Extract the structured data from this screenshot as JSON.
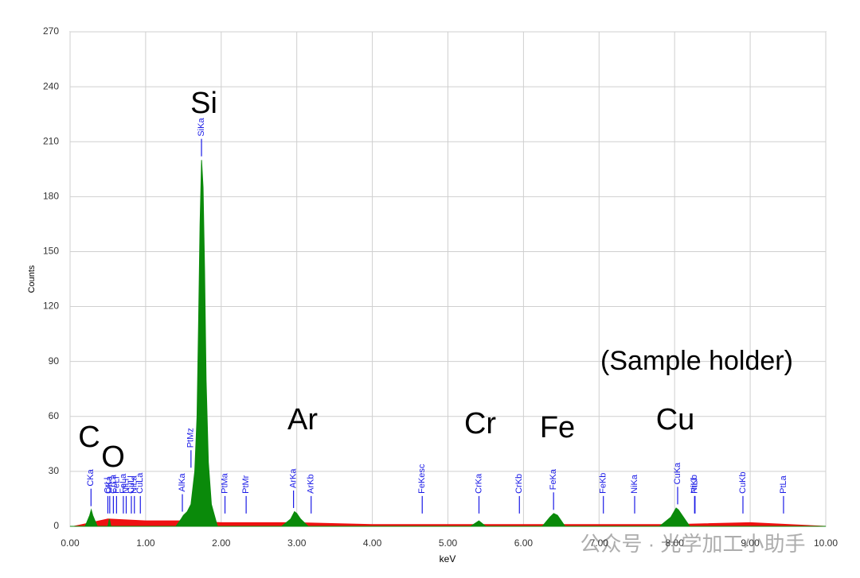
{
  "chart_data": {
    "type": "spectrum",
    "ylabel": "Counts",
    "xlabel": "keV",
    "xlim": [
      0,
      10
    ],
    "ylim": [
      0,
      270
    ],
    "yticks": [
      0,
      30,
      60,
      90,
      120,
      150,
      180,
      210,
      240,
      270
    ],
    "xticks": [
      {
        "value": 0,
        "label": "0.00"
      },
      {
        "value": 1,
        "label": "1.00"
      },
      {
        "value": 2,
        "label": "2.00"
      },
      {
        "value": 3,
        "label": "3.00"
      },
      {
        "value": 4,
        "label": "4.00"
      },
      {
        "value": 5,
        "label": "5.00"
      },
      {
        "value": 6,
        "label": "6.00"
      },
      {
        "value": 7,
        "label": "7.00"
      },
      {
        "value": 8,
        "label": "8.00"
      },
      {
        "value": 9,
        "label": "9.00"
      },
      {
        "value": 10,
        "label": "10.00"
      }
    ],
    "grid": true,
    "series": [
      {
        "color": "#ee1111",
        "x": [
          0.05,
          0.5,
          1.0,
          1.5,
          2.0,
          2.5,
          3.0,
          4.0,
          5.0,
          6.0,
          7.0,
          8.0,
          9.0,
          10.0
        ],
        "values": [
          0,
          4,
          3,
          3,
          2,
          2,
          2,
          1,
          1,
          1,
          1,
          1,
          2,
          0
        ]
      },
      {
        "color": "#0a8a0a",
        "x": [
          0.0,
          0.2,
          0.26,
          0.28,
          0.3,
          0.36,
          0.5,
          0.52,
          0.54,
          1.4,
          1.47,
          1.5,
          1.55,
          1.6,
          1.65,
          1.68,
          1.7,
          1.72,
          1.74,
          1.76,
          1.78,
          1.8,
          1.83,
          1.87,
          1.95,
          2.8,
          2.92,
          2.97,
          3.0,
          3.05,
          3.15,
          5.3,
          5.41,
          5.5,
          6.25,
          6.35,
          6.4,
          6.45,
          6.55,
          7.8,
          7.95,
          8.02,
          8.05,
          8.1,
          8.2,
          10.0
        ],
        "values": [
          0,
          0,
          6,
          9,
          6,
          0,
          0,
          4,
          0,
          0,
          4,
          6,
          8,
          12,
          30,
          60,
          110,
          165,
          200,
          185,
          140,
          80,
          35,
          12,
          0,
          0,
          4,
          8,
          7,
          4,
          0,
          0,
          3,
          0,
          0,
          5,
          7,
          6,
          0,
          0,
          5,
          10,
          9,
          6,
          0,
          0
        ]
      }
    ],
    "markers": [
      {
        "label": "CKa",
        "energy": 0.277
      },
      {
        "label": "OKa",
        "energy": 0.525
      },
      {
        "label": "CrLl",
        "energy": 0.5
      },
      {
        "label": "CrLa",
        "energy": 0.573
      },
      {
        "label": "FeLl",
        "energy": 0.615
      },
      {
        "label": "FeLa",
        "energy": 0.705
      },
      {
        "label": "NiLl",
        "energy": 0.743
      },
      {
        "label": "CuLl",
        "energy": 0.811
      },
      {
        "label": "NiLa",
        "energy": 0.851
      },
      {
        "label": "CuLa",
        "energy": 0.93
      },
      {
        "label": "AlKa",
        "energy": 1.486
      },
      {
        "label": "PtMz",
        "energy": 1.6
      },
      {
        "label": "SiKa",
        "energy": 1.739
      },
      {
        "label": "PtMa",
        "energy": 2.05
      },
      {
        "label": "PtMr",
        "energy": 2.33
      },
      {
        "label": "ArKa",
        "energy": 2.957
      },
      {
        "label": "ArKb",
        "energy": 3.19
      },
      {
        "label": "FeKesc",
        "energy": 4.66
      },
      {
        "label": "CrKa",
        "energy": 5.411
      },
      {
        "label": "CrKb",
        "energy": 5.946
      },
      {
        "label": "FeKa",
        "energy": 6.398
      },
      {
        "label": "FeKb",
        "energy": 7.057
      },
      {
        "label": "NiKa",
        "energy": 7.471
      },
      {
        "label": "CuKa",
        "energy": 8.04
      },
      {
        "label": "NiKb",
        "energy": 8.264
      },
      {
        "label": "PtLl",
        "energy": 8.27
      },
      {
        "label": "CuKb",
        "energy": 8.904
      },
      {
        "label": "PtLa",
        "energy": 9.441
      }
    ],
    "annotations": [
      "C",
      "O",
      "Si",
      "Ar",
      "Cr",
      "Fe",
      "Cu",
      "(Sample holder)"
    ],
    "watermark": "公众号 · 光学加工小助手"
  }
}
